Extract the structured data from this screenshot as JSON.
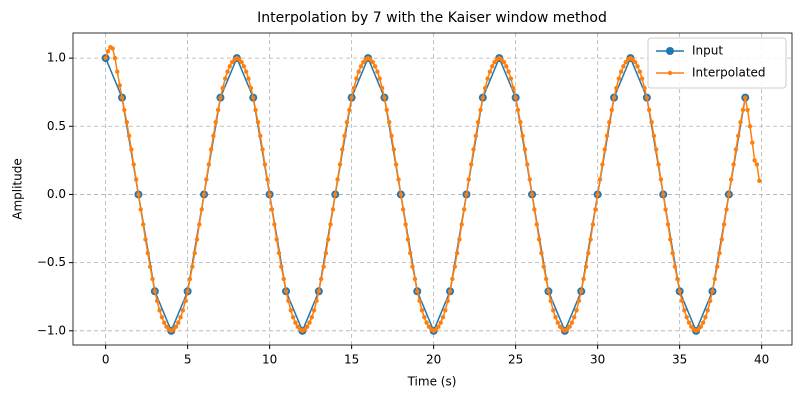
{
  "chart_data": {
    "type": "line",
    "title": "Interpolation by 7 with the Kaiser window method",
    "x_label": "Time (s)",
    "y_label": "Amplitude",
    "xlim": [
      -1.99,
      41.85
    ],
    "ylim": [
      -1.104,
      1.184
    ],
    "xticks": [
      0,
      5,
      10,
      15,
      20,
      25,
      30,
      35,
      40
    ],
    "yticks": [
      {
        "value": -1,
        "label": "−1.0"
      },
      {
        "value": -0.5,
        "label": "−0.5"
      },
      {
        "value": 0,
        "label": "0.0"
      },
      0.5,
      {
        "value": 1,
        "label": "1.0"
      }
    ],
    "grid": true,
    "legend": "upper right",
    "series": [
      {
        "name": "Input",
        "color": "#1f77b4",
        "marker": "large",
        "x": [
          0,
          1,
          2,
          3,
          4,
          5,
          6,
          7,
          8,
          9,
          10,
          11,
          12,
          13,
          14,
          15,
          16,
          17,
          18,
          19,
          20,
          21,
          22,
          23,
          24,
          25,
          26,
          27,
          28,
          29,
          30,
          31,
          32,
          33,
          34,
          35,
          36,
          37,
          38,
          39
        ],
        "values": [
          1,
          0.71,
          0,
          -0.71,
          -1,
          -0.71,
          0,
          0.71,
          1,
          0.71,
          0,
          -0.71,
          -1,
          -0.71,
          0,
          0.71,
          1,
          0.71,
          0,
          -0.71,
          -1,
          -0.71,
          0,
          0.71,
          1,
          0.71,
          0,
          -0.71,
          -1,
          -0.71,
          0,
          0.71,
          1,
          0.71,
          0,
          -0.71,
          -1,
          -0.71,
          0,
          0.71
        ]
      },
      {
        "name": "Interpolated",
        "color": "#ff7f0e",
        "marker": "small",
        "x": [
          0,
          0.14,
          0.29,
          0.43,
          0.57,
          0.71,
          0.86,
          1,
          1.14,
          1.29,
          1.43,
          1.57,
          1.71,
          1.86,
          2,
          2.14,
          2.29,
          2.43,
          2.57,
          2.71,
          2.86,
          3,
          3.14,
          3.29,
          3.43,
          3.57,
          3.71,
          3.86,
          4,
          4.14,
          4.29,
          4.43,
          4.57,
          4.71,
          4.86,
          5,
          5.14,
          5.29,
          5.43,
          5.57,
          5.71,
          5.86,
          6,
          6.14,
          6.29,
          6.43,
          6.57,
          6.71,
          6.86,
          7,
          7.14,
          7.29,
          7.43,
          7.57,
          7.71,
          7.86,
          8,
          8.14,
          8.29,
          8.43,
          8.57,
          8.71,
          8.86,
          9,
          9.14,
          9.29,
          9.43,
          9.57,
          9.71,
          9.86,
          10,
          10.14,
          10.29,
          10.43,
          10.57,
          10.71,
          10.86,
          11,
          11.14,
          11.29,
          11.43,
          11.57,
          11.71,
          11.86,
          12,
          12.14,
          12.29,
          12.43,
          12.57,
          12.71,
          12.86,
          13,
          13.14,
          13.29,
          13.43,
          13.57,
          13.71,
          13.86,
          14,
          14.14,
          14.29,
          14.43,
          14.57,
          14.71,
          14.86,
          15,
          15.14,
          15.29,
          15.43,
          15.57,
          15.71,
          15.86,
          16,
          16.14,
          16.29,
          16.43,
          16.57,
          16.71,
          16.86,
          17,
          17.14,
          17.29,
          17.43,
          17.57,
          17.71,
          17.86,
          18,
          18.14,
          18.29,
          18.43,
          18.57,
          18.71,
          18.86,
          19,
          19.14,
          19.29,
          19.43,
          19.57,
          19.71,
          19.86,
          20,
          20.14,
          20.29,
          20.43,
          20.57,
          20.71,
          20.86,
          21,
          21.14,
          21.29,
          21.43,
          21.57,
          21.71,
          21.86,
          22,
          22.14,
          22.29,
          22.43,
          22.57,
          22.71,
          22.86,
          23,
          23.14,
          23.29,
          23.43,
          23.57,
          23.71,
          23.86,
          24,
          24.14,
          24.29,
          24.43,
          24.57,
          24.71,
          24.86,
          25,
          25.14,
          25.29,
          25.43,
          25.57,
          25.71,
          25.86,
          26,
          26.14,
          26.29,
          26.43,
          26.57,
          26.71,
          26.86,
          27,
          27.14,
          27.29,
          27.43,
          27.57,
          27.71,
          27.86,
          28,
          28.14,
          28.29,
          28.43,
          28.57,
          28.71,
          28.86,
          29,
          29.14,
          29.29,
          29.43,
          29.57,
          29.71,
          29.86,
          30,
          30.14,
          30.29,
          30.43,
          30.57,
          30.71,
          30.86,
          31,
          31.14,
          31.29,
          31.43,
          31.57,
          31.71,
          31.86,
          32,
          32.14,
          32.29,
          32.43,
          32.57,
          32.71,
          32.86,
          33,
          33.14,
          33.29,
          33.43,
          33.57,
          33.71,
          33.86,
          34,
          34.14,
          34.29,
          34.43,
          34.57,
          34.71,
          34.86,
          35,
          35.14,
          35.29,
          35.43,
          35.57,
          35.71,
          35.86,
          36,
          36.14,
          36.29,
          36.43,
          36.57,
          36.71,
          36.86,
          37,
          37.14,
          37.29,
          37.43,
          37.57,
          37.71,
          37.86,
          38,
          38.14,
          38.29,
          38.43,
          38.57,
          38.71,
          38.86,
          39,
          39.14,
          39.29,
          39.43,
          39.57,
          39.71,
          39.86
        ],
        "values": [
          1,
          1.05,
          1.08,
          1.07,
          1,
          0.9,
          0.8,
          0.71,
          0.62,
          0.53,
          0.43,
          0.33,
          0.22,
          0.11,
          0,
          -0.11,
          -0.22,
          -0.33,
          -0.43,
          -0.53,
          -0.62,
          -0.71,
          -0.78,
          -0.85,
          -0.9,
          -0.94,
          -0.97,
          -0.99,
          -1,
          -0.99,
          -0.97,
          -0.94,
          -0.9,
          -0.85,
          -0.78,
          -0.71,
          -0.62,
          -0.53,
          -0.43,
          -0.33,
          -0.22,
          -0.11,
          0,
          0.11,
          0.22,
          0.33,
          0.43,
          0.53,
          0.62,
          0.71,
          0.78,
          0.85,
          0.9,
          0.94,
          0.97,
          0.99,
          1,
          0.99,
          0.97,
          0.94,
          0.9,
          0.85,
          0.78,
          0.71,
          0.62,
          0.53,
          0.43,
          0.33,
          0.22,
          0.11,
          0,
          -0.11,
          -0.22,
          -0.33,
          -0.43,
          -0.53,
          -0.62,
          -0.71,
          -0.78,
          -0.85,
          -0.9,
          -0.94,
          -0.97,
          -0.99,
          -1,
          -0.99,
          -0.97,
          -0.94,
          -0.9,
          -0.85,
          -0.78,
          -0.71,
          -0.62,
          -0.53,
          -0.43,
          -0.33,
          -0.22,
          -0.11,
          0,
          0.11,
          0.22,
          0.33,
          0.43,
          0.53,
          0.62,
          0.71,
          0.78,
          0.85,
          0.9,
          0.94,
          0.97,
          0.99,
          1,
          0.99,
          0.97,
          0.94,
          0.9,
          0.85,
          0.78,
          0.71,
          0.62,
          0.53,
          0.43,
          0.33,
          0.22,
          0.11,
          0,
          -0.11,
          -0.22,
          -0.33,
          -0.43,
          -0.53,
          -0.62,
          -0.71,
          -0.78,
          -0.85,
          -0.9,
          -0.94,
          -0.97,
          -0.99,
          -1,
          -0.99,
          -0.97,
          -0.94,
          -0.9,
          -0.85,
          -0.78,
          -0.71,
          -0.62,
          -0.53,
          -0.43,
          -0.33,
          -0.22,
          -0.11,
          0,
          0.11,
          0.22,
          0.33,
          0.43,
          0.53,
          0.62,
          0.71,
          0.78,
          0.85,
          0.9,
          0.94,
          0.97,
          0.99,
          1,
          0.99,
          0.97,
          0.94,
          0.9,
          0.85,
          0.78,
          0.71,
          0.62,
          0.53,
          0.43,
          0.33,
          0.22,
          0.11,
          0,
          -0.11,
          -0.22,
          -0.33,
          -0.43,
          -0.53,
          -0.62,
          -0.71,
          -0.78,
          -0.85,
          -0.9,
          -0.94,
          -0.97,
          -0.99,
          -1,
          -0.99,
          -0.97,
          -0.94,
          -0.9,
          -0.85,
          -0.78,
          -0.71,
          -0.62,
          -0.53,
          -0.43,
          -0.33,
          -0.22,
          -0.11,
          0,
          0.11,
          0.22,
          0.33,
          0.43,
          0.53,
          0.62,
          0.71,
          0.78,
          0.85,
          0.9,
          0.94,
          0.97,
          0.99,
          1,
          0.99,
          0.97,
          0.94,
          0.9,
          0.85,
          0.78,
          0.71,
          0.62,
          0.53,
          0.43,
          0.33,
          0.22,
          0.11,
          0,
          -0.11,
          -0.22,
          -0.33,
          -0.43,
          -0.53,
          -0.62,
          -0.71,
          -0.78,
          -0.85,
          -0.9,
          -0.94,
          -0.97,
          -0.99,
          -1,
          -0.99,
          -0.97,
          -0.94,
          -0.9,
          -0.85,
          -0.78,
          -0.71,
          -0.62,
          -0.53,
          -0.43,
          -0.33,
          -0.22,
          -0.11,
          0,
          0.11,
          0.22,
          0.33,
          0.43,
          0.53,
          0.62,
          0.71,
          0.62,
          0.5,
          0.38,
          0.25,
          0.22,
          0.1
        ]
      }
    ]
  }
}
